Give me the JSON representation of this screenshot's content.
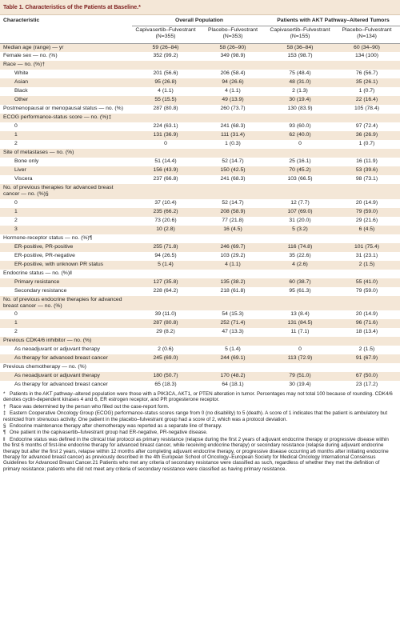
{
  "title": "Table 1. Characteristics of the Patients at Baseline.*",
  "header": {
    "characteristic": "Characteristic",
    "overall": "Overall Population",
    "akt": "Patients with AKT Pathway–Altered Tumors",
    "cols": [
      "Capivasertib–Fulvestrant (N=355)",
      "Placebo–Fulvestrant (N=353)",
      "Capivasertib–Fulvestrant (N=155)",
      "Placebo–Fulvestrant (N=134)"
    ]
  },
  "rows": [
    {
      "label": "Median age (range) — yr",
      "level": 0,
      "vals": [
        "59 (26–84)",
        "58 (26–90)",
        "58 (36–84)",
        "60 (34–90)"
      ]
    },
    {
      "label": "Female sex — no. (%)",
      "level": 0,
      "vals": [
        "352 (99.2)",
        "349 (98.9)",
        "153 (98.7)",
        "134 (100)"
      ]
    },
    {
      "label": "Race — no. (%)†",
      "level": 0,
      "vals": [
        "",
        "",
        "",
        ""
      ]
    },
    {
      "label": "White",
      "level": 1,
      "vals": [
        "201 (56.6)",
        "206 (58.4)",
        "75 (48.4)",
        "76 (56.7)"
      ]
    },
    {
      "label": "Asian",
      "level": 1,
      "vals": [
        "95 (26.8)",
        "94 (26.6)",
        "48 (31.0)",
        "35 (26.1)"
      ]
    },
    {
      "label": "Black",
      "level": 1,
      "vals": [
        "4 (1.1)",
        "4 (1.1)",
        "2 (1.3)",
        "1 (0.7)"
      ]
    },
    {
      "label": "Other",
      "level": 1,
      "vals": [
        "55 (15.5)",
        "49 (13.9)",
        "30 (19.4)",
        "22 (16.4)"
      ]
    },
    {
      "label": "Postmenopausal or menopausal status — no. (%)",
      "level": 0,
      "vals": [
        "287 (80.8)",
        "260 (73.7)",
        "130 (83.9)",
        "105 (78.4)"
      ]
    },
    {
      "label": "ECOG performance-status score — no. (%)‡",
      "level": 0,
      "vals": [
        "",
        "",
        "",
        ""
      ]
    },
    {
      "label": "0",
      "level": 1,
      "vals": [
        "224 (63.1)",
        "241 (68.3)",
        "93 (60.0)",
        "97 (72.4)"
      ]
    },
    {
      "label": "1",
      "level": 1,
      "vals": [
        "131 (36.9)",
        "111 (31.4)",
        "62 (40.0)",
        "36 (26.9)"
      ]
    },
    {
      "label": "2",
      "level": 1,
      "vals": [
        "0",
        "1 (0.3)",
        "0",
        "1 (0.7)"
      ]
    },
    {
      "label": "Site of metastases — no. (%)",
      "level": 0,
      "vals": [
        "",
        "",
        "",
        ""
      ]
    },
    {
      "label": "Bone only",
      "level": 1,
      "vals": [
        "51 (14.4)",
        "52 (14.7)",
        "25 (16.1)",
        "16 (11.9)"
      ]
    },
    {
      "label": "Liver",
      "level": 1,
      "vals": [
        "156 (43.9)",
        "150 (42.5)",
        "70 (45.2)",
        "53 (39.6)"
      ]
    },
    {
      "label": "Viscera",
      "level": 1,
      "vals": [
        "237 (66.8)",
        "241 (68.3)",
        "103 (66.5)",
        "98 (73.1)"
      ]
    },
    {
      "label": "No. of previous therapies for advanced breast cancer — no. (%)§",
      "level": 0,
      "tall": true,
      "vals": [
        "",
        "",
        "",
        ""
      ]
    },
    {
      "label": "0",
      "level": 1,
      "vals": [
        "37 (10.4)",
        "52 (14.7)",
        "12 (7.7)",
        "20 (14.9)"
      ]
    },
    {
      "label": "1",
      "level": 1,
      "vals": [
        "235 (66.2)",
        "208 (58.9)",
        "107 (69.0)",
        "79 (59.0)"
      ]
    },
    {
      "label": "2",
      "level": 1,
      "vals": [
        "73 (20.6)",
        "77 (21.8)",
        "31 (20.0)",
        "29 (21.6)"
      ]
    },
    {
      "label": "3",
      "level": 1,
      "vals": [
        "10 (2.8)",
        "16 (4.5)",
        "5 (3.2)",
        "6 (4.5)"
      ]
    },
    {
      "label": "Hormone-receptor status — no. (%)¶",
      "level": 0,
      "vals": [
        "",
        "",
        "",
        ""
      ]
    },
    {
      "label": "ER-positive, PR-positive",
      "level": 1,
      "vals": [
        "255 (71.8)",
        "246 (69.7)",
        "116 (74.8)",
        "101 (75.4)"
      ]
    },
    {
      "label": "ER-positive, PR-negative",
      "level": 1,
      "vals": [
        "94 (26.5)",
        "103 (29.2)",
        "35 (22.6)",
        "31 (23.1)"
      ]
    },
    {
      "label": "ER-positive, with unknown PR status",
      "level": 1,
      "vals": [
        "5 (1.4)",
        "4 (1.1)",
        "4 (2.6)",
        "2 (1.5)"
      ]
    },
    {
      "label": "Endocrine status — no. (%)‖",
      "level": 0,
      "vals": [
        "",
        "",
        "",
        ""
      ]
    },
    {
      "label": "Primary resistance",
      "level": 1,
      "vals": [
        "127 (35.8)",
        "135 (38.2)",
        "60 (38.7)",
        "55 (41.0)"
      ]
    },
    {
      "label": "Secondary resistance",
      "level": 1,
      "vals": [
        "228 (64.2)",
        "218 (61.8)",
        "95 (61.3)",
        "79 (59.0)"
      ]
    },
    {
      "label": "No. of previous endocrine therapies for advanced breast cancer — no. (%)",
      "level": 0,
      "tall": true,
      "vals": [
        "",
        "",
        "",
        ""
      ]
    },
    {
      "label": "0",
      "level": 1,
      "vals": [
        "39 (11.0)",
        "54 (15.3)",
        "13 (8.4)",
        "20 (14.9)"
      ]
    },
    {
      "label": "1",
      "level": 1,
      "vals": [
        "287 (80.8)",
        "252 (71.4)",
        "131 (84.5)",
        "96 (71.6)"
      ]
    },
    {
      "label": "2",
      "level": 1,
      "vals": [
        "29 (8.2)",
        "47 (13.3)",
        "11 (7.1)",
        "18 (13.4)"
      ]
    },
    {
      "label": "Previous CDK4/6 inhibitor — no. (%)",
      "level": 0,
      "vals": [
        "",
        "",
        "",
        ""
      ]
    },
    {
      "label": "As neoadjuvant or adjuvant therapy",
      "level": 1,
      "vals": [
        "2 (0.6)",
        "5 (1.4)",
        "0",
        "2 (1.5)"
      ]
    },
    {
      "label": "As therapy for advanced breast cancer",
      "level": 1,
      "vals": [
        "245 (69.0)",
        "244 (69.1)",
        "113 (72.9)",
        "91 (67.9)"
      ]
    },
    {
      "label": "Previous chemotherapy — no. (%)",
      "level": 0,
      "vals": [
        "",
        "",
        "",
        ""
      ]
    },
    {
      "label": "As neoadjuvant or adjuvant therapy",
      "level": 1,
      "vals": [
        "180 (50.7)",
        "170 (48.2)",
        "79 (51.0)",
        "67 (50.0)"
      ]
    },
    {
      "label": "As therapy for advanced breast cancer",
      "level": 1,
      "vals": [
        "65 (18.3)",
        "64 (18.1)",
        "30 (19.4)",
        "23 (17.2)"
      ]
    }
  ],
  "notes": [
    {
      "mark": "*",
      "text": "Patients in the AKT pathway–altered population were those with a PIK3CA, AKT1, or PTEN alteration in tumor. Percentages may not total 100 because of rounding. CDK4/6 denotes cyclin-dependent kinases 4 and 6, ER estrogen receptor, and PR progesterone receptor."
    },
    {
      "mark": "†",
      "text": "Race was determined by the person who filled out the case-report form."
    },
    {
      "mark": "‡",
      "text": "Eastern Cooperative Oncology Group (ECOG) performance-status scores range from 0 (no disability) to 5 (death). A score of 1 indicates that the patient is ambulatory but restricted from strenuous activity. One patient in the placebo–fulvestrant group had a score of 2, which was a protocol deviation."
    },
    {
      "mark": "§",
      "text": "Endocrine maintenance therapy after chemotherapy was reported as a separate line of therapy."
    },
    {
      "mark": "¶",
      "text": "One patient in the capivasertib–fulvestrant group had ER-negative, PR-negative disease."
    },
    {
      "mark": "‖",
      "text": "Endocrine status was defined in the clinical trial protocol as primary resistance (relapse during the first 2 years of adjuvant endocrine therapy or progressive disease within the first 6 months of first-line endocrine therapy for advanced breast cancer, while receiving endocrine therapy) or secondary resistance (relapse during adjuvant endocrine therapy but after the first 2 years, relapse within 12 months after completing adjuvant endocrine therapy, or progressive disease occurring ≥6 months after initiating endocrine therapy for advanced breast cancer) as previously described in the 4th European School of Oncology–European Society for Medical Oncology International Consensus Guidelines for Advanced Breast Cancer.21 Patients who met any criteria of secondary resistance were classified as such, regardless of whether they met the definition of primary resistance; patients who did not meet any criteria of secondary resistance were classified as having primary resistance."
    }
  ]
}
